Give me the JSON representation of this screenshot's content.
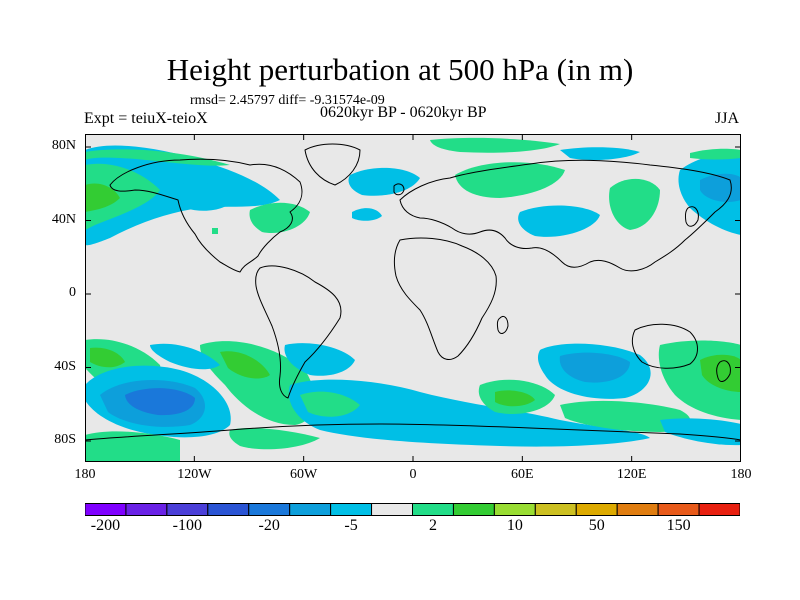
{
  "title": "Height perturbation at 500 hPa (in m)",
  "stats": "rmsd= 2.45797 diff= -9.31574e-09",
  "experiment": "Expt = teiuX-teioX",
  "period": "0620kyr BP - 0620kyr BP",
  "season": "JJA",
  "lat_ticks": [
    {
      "label": "80N",
      "value": 80
    },
    {
      "label": "40N",
      "value": 40
    },
    {
      "label": "0",
      "value": 0
    },
    {
      "label": "40S",
      "value": -40
    },
    {
      "label": "80S",
      "value": -80
    }
  ],
  "lon_ticks": [
    {
      "label": "180",
      "value": -180
    },
    {
      "label": "120W",
      "value": -120
    },
    {
      "label": "60W",
      "value": -60
    },
    {
      "label": "0",
      "value": 0
    },
    {
      "label": "60E",
      "value": 60
    },
    {
      "label": "120E",
      "value": 120
    },
    {
      "label": "180",
      "value": 180
    }
  ],
  "colorbar": {
    "colors": [
      "#7f00ff",
      "#6a22e6",
      "#4b3fd8",
      "#2a54d4",
      "#1a78da",
      "#0d9fdb",
      "#00bfe6",
      "#e8e8e8",
      "#22dd88",
      "#33cc33",
      "#99dd33",
      "#ccc022",
      "#ddaa00",
      "#e07d10",
      "#e85a1a",
      "#e82010"
    ],
    "labels": [
      {
        "text": "-200",
        "index": 1
      },
      {
        "text": "-100",
        "index": 3
      },
      {
        "text": "-20",
        "index": 5
      },
      {
        "text": "-5",
        "index": 7
      },
      {
        "text": "2",
        "index": 9
      },
      {
        "text": "10",
        "index": 11
      },
      {
        "text": "50",
        "index": 13
      },
      {
        "text": "150",
        "index": 15
      }
    ]
  },
  "colors": {
    "background": "#e8e8e8",
    "neg_light": "#00bfe6",
    "neg_mid": "#0d9fdb",
    "neg_strong": "#1a78da",
    "pos_light": "#22dd88",
    "pos_mid": "#33cc33"
  }
}
